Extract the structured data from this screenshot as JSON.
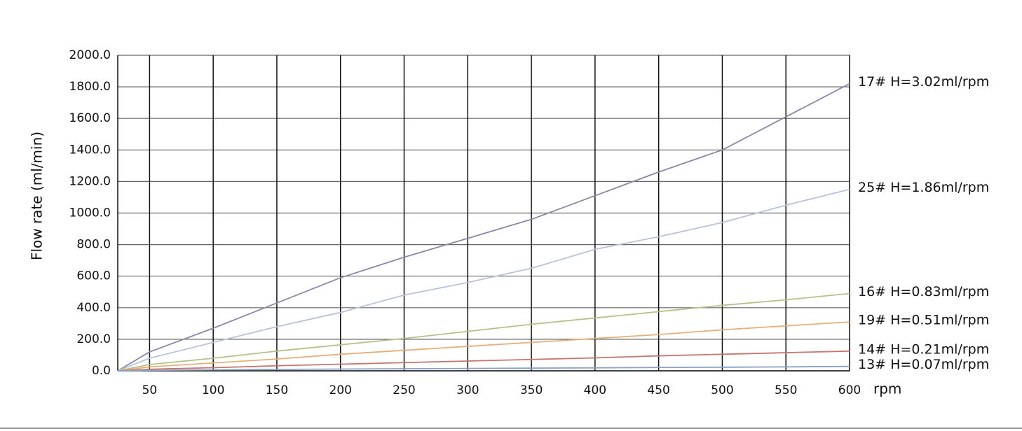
{
  "chart_data": {
    "type": "line",
    "y_label": "Flow rate (ml/min)",
    "x_label": "rpm",
    "x": [
      25,
      50,
      100,
      150,
      200,
      250,
      300,
      350,
      400,
      450,
      500,
      550,
      600
    ],
    "series": [
      {
        "name": "17# H=3.02ml/rpm",
        "color": "#8e86a6",
        "values": [
          0,
          120,
          270,
          430,
          590,
          720,
          840,
          960,
          1110,
          1260,
          1400,
          1610,
          1820
        ]
      },
      {
        "name": "25# H=1.86ml/rpm",
        "color": "#b7c3da",
        "values": [
          0,
          80,
          180,
          280,
          370,
          480,
          560,
          650,
          770,
          850,
          940,
          1050,
          1150
        ]
      },
      {
        "name": "16# H=0.83ml/rpm",
        "color": "#b3c28a",
        "values": [
          0,
          40,
          80,
          125,
          165,
          205,
          250,
          295,
          335,
          375,
          415,
          450,
          490
        ]
      },
      {
        "name": "19# H=0.51ml/rpm",
        "color": "#e6ae78",
        "values": [
          0,
          25,
          50,
          75,
          105,
          130,
          155,
          180,
          205,
          230,
          260,
          285,
          310
        ]
      },
      {
        "name": "14# H=0.21ml/rpm",
        "color": "#c6766e",
        "values": [
          0,
          10,
          20,
          32,
          42,
          52,
          62,
          72,
          82,
          95,
          105,
          115,
          125
        ]
      },
      {
        "name": "13# H=0.07ml/rpm",
        "color": "#88a0c2",
        "values": [
          0,
          3,
          6,
          9,
          11,
          13,
          15,
          17,
          19,
          21,
          23,
          25,
          28
        ]
      }
    ],
    "xlim": [
      25,
      600
    ],
    "xticks": [
      50,
      100,
      150,
      200,
      250,
      300,
      350,
      400,
      450,
      500,
      550,
      600
    ],
    "ylim": [
      0,
      2000
    ],
    "yticks": [
      {
        "value": 0,
        "label": "0.0"
      },
      {
        "value": 200,
        "label": "200.0"
      },
      {
        "value": 400,
        "label": "400.0"
      },
      {
        "value": 600,
        "label": "600.0"
      },
      {
        "value": 800,
        "label": "800.0"
      },
      {
        "value": 1000,
        "label": "1000.0"
      },
      {
        "value": 1200,
        "label": "1200.0"
      },
      {
        "value": 1400,
        "label": "1400.0"
      },
      {
        "value": 1600,
        "label": "1600.0"
      },
      {
        "value": 1800,
        "label": "1800.0"
      },
      {
        "value": 2000,
        "label": "2000.0"
      }
    ],
    "grid": true
  }
}
